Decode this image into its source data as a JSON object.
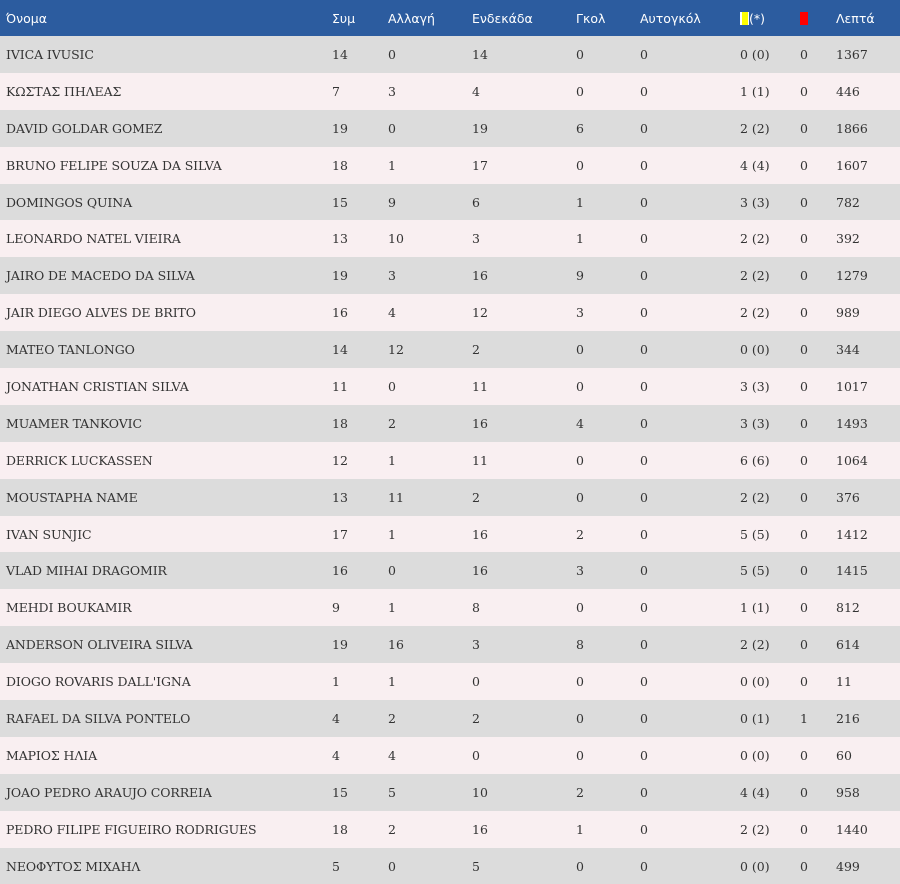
{
  "colors": {
    "header_bg": "#2c5c9f",
    "row_odd": "#dcdcdc",
    "row_even": "#f9eff1",
    "yellow_card": "#ffff00",
    "red_card": "#ff0000"
  },
  "headers": {
    "name": "Όνομα",
    "apps": "Συμ",
    "sub": "Αλλαγή",
    "starting": "Ενδεκάδα",
    "goals": "Γκολ",
    "own_goals": "Αυτογκόλ",
    "yellow_note": "(*)",
    "yellow_icon": "yellow-card-icon",
    "red_icon": "red-card-icon",
    "minutes": "Λεπτά"
  },
  "players": [
    {
      "name": "IVICA IVUSIC",
      "apps": "14",
      "sub": "0",
      "starting": "14",
      "goals": "0",
      "own_goals": "0",
      "yellow": "0 (0)",
      "red": "0",
      "minutes": "1367"
    },
    {
      "name": "ΚΩΣΤΑΣ ΠΗΛΕΑΣ",
      "apps": "7",
      "sub": "3",
      "starting": "4",
      "goals": "0",
      "own_goals": "0",
      "yellow": "1 (1)",
      "red": "0",
      "minutes": "446"
    },
    {
      "name": "DAVID GOLDAR GOMEZ",
      "apps": "19",
      "sub": "0",
      "starting": "19",
      "goals": "6",
      "own_goals": "0",
      "yellow": "2 (2)",
      "red": "0",
      "minutes": "1866"
    },
    {
      "name": "BRUNO FELIPE SOUZA DA SILVA",
      "apps": "18",
      "sub": "1",
      "starting": "17",
      "goals": "0",
      "own_goals": "0",
      "yellow": "4 (4)",
      "red": "0",
      "minutes": "1607"
    },
    {
      "name": "DOMINGOS QUINA",
      "apps": "15",
      "sub": "9",
      "starting": "6",
      "goals": "1",
      "own_goals": "0",
      "yellow": "3 (3)",
      "red": "0",
      "minutes": "782"
    },
    {
      "name": "LEONARDO NATEL VIEIRA",
      "apps": "13",
      "sub": "10",
      "starting": "3",
      "goals": "1",
      "own_goals": "0",
      "yellow": "2 (2)",
      "red": "0",
      "minutes": "392"
    },
    {
      "name": "JAIRO DE MACEDO DA SILVA",
      "apps": "19",
      "sub": "3",
      "starting": "16",
      "goals": "9",
      "own_goals": "0",
      "yellow": "2 (2)",
      "red": "0",
      "minutes": "1279"
    },
    {
      "name": "JAIR DIEGO ALVES DE BRITO",
      "apps": "16",
      "sub": "4",
      "starting": "12",
      "goals": "3",
      "own_goals": "0",
      "yellow": "2 (2)",
      "red": "0",
      "minutes": "989"
    },
    {
      "name": "MATEO TANLONGO",
      "apps": "14",
      "sub": "12",
      "starting": "2",
      "goals": "0",
      "own_goals": "0",
      "yellow": "0 (0)",
      "red": "0",
      "minutes": "344"
    },
    {
      "name": "JONATHAN CRISTIAN SILVA",
      "apps": "11",
      "sub": "0",
      "starting": "11",
      "goals": "0",
      "own_goals": "0",
      "yellow": "3 (3)",
      "red": "0",
      "minutes": "1017"
    },
    {
      "name": "MUAMER TANKOVIC",
      "apps": "18",
      "sub": "2",
      "starting": "16",
      "goals": "4",
      "own_goals": "0",
      "yellow": "3 (3)",
      "red": "0",
      "minutes": "1493"
    },
    {
      "name": "DERRICK LUCKASSEN",
      "apps": "12",
      "sub": "1",
      "starting": "11",
      "goals": "0",
      "own_goals": "0",
      "yellow": "6 (6)",
      "red": "0",
      "minutes": "1064"
    },
    {
      "name": "MOUSTAPHA NAME",
      "apps": "13",
      "sub": "11",
      "starting": "2",
      "goals": "0",
      "own_goals": "0",
      "yellow": "2 (2)",
      "red": "0",
      "minutes": "376"
    },
    {
      "name": "IVAN SUNJIC",
      "apps": "17",
      "sub": "1",
      "starting": "16",
      "goals": "2",
      "own_goals": "0",
      "yellow": "5 (5)",
      "red": "0",
      "minutes": "1412"
    },
    {
      "name": "VLAD MIHAI DRAGOMIR",
      "apps": "16",
      "sub": "0",
      "starting": "16",
      "goals": "3",
      "own_goals": "0",
      "yellow": "5 (5)",
      "red": "0",
      "minutes": "1415"
    },
    {
      "name": "MEHDI BOUKAMIR",
      "apps": "9",
      "sub": "1",
      "starting": "8",
      "goals": "0",
      "own_goals": "0",
      "yellow": "1 (1)",
      "red": "0",
      "minutes": "812"
    },
    {
      "name": "ANDERSON OLIVEIRA SILVA",
      "apps": "19",
      "sub": "16",
      "starting": "3",
      "goals": "8",
      "own_goals": "0",
      "yellow": "2 (2)",
      "red": "0",
      "minutes": "614"
    },
    {
      "name": "DIOGO ROVARIS DALL'IGNA",
      "apps": "1",
      "sub": "1",
      "starting": "0",
      "goals": "0",
      "own_goals": "0",
      "yellow": "0 (0)",
      "red": "0",
      "minutes": "11"
    },
    {
      "name": "RAFAEL DA SILVA PONTELO",
      "apps": "4",
      "sub": "2",
      "starting": "2",
      "goals": "0",
      "own_goals": "0",
      "yellow": "0 (1)",
      "red": "1",
      "minutes": "216"
    },
    {
      "name": "ΜΑΡΙΟΣ ΗΛΙΑ",
      "apps": "4",
      "sub": "4",
      "starting": "0",
      "goals": "0",
      "own_goals": "0",
      "yellow": "0 (0)",
      "red": "0",
      "minutes": "60"
    },
    {
      "name": "JOAO PEDRO ARAUJO CORREIA",
      "apps": "15",
      "sub": "5",
      "starting": "10",
      "goals": "2",
      "own_goals": "0",
      "yellow": "4 (4)",
      "red": "0",
      "minutes": "958"
    },
    {
      "name": "PEDRO FILIPE FIGUEIRO RODRIGUES",
      "apps": "18",
      "sub": "2",
      "starting": "16",
      "goals": "1",
      "own_goals": "0",
      "yellow": "2 (2)",
      "red": "0",
      "minutes": "1440"
    },
    {
      "name": "ΝΕΟΦΥΤΟΣ ΜΙΧΑΗΛ",
      "apps": "5",
      "sub": "0",
      "starting": "5",
      "goals": "0",
      "own_goals": "0",
      "yellow": "0 (0)",
      "red": "0",
      "minutes": "499"
    }
  ]
}
